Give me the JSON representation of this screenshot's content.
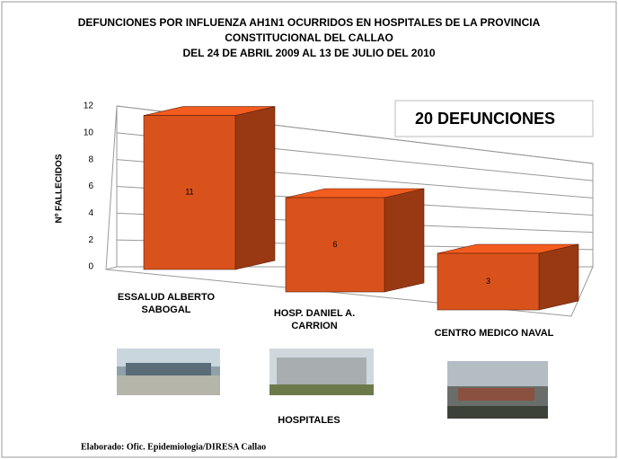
{
  "chart_data": {
    "type": "bar3d",
    "title": [
      "DEFUNCIONES  POR INFLUENZA AH1N1 OCURRIDOS EN HOSPITALES DE LA PROVINCIA",
      "CONSTITUCIONAL DEL CALLAO",
      "DEL 24 DE ABRIL 2009 AL 13 DE JULIO DEL 2010"
    ],
    "annotation": "20 DEFUNCIONES",
    "y_label": "Nº FALLECIDOS",
    "x_label": "HOSPITALES",
    "footer": "Elaborado: Ofic. Epidemiologia/DIRESA Callao",
    "categories": [
      "ESSALUD ALBERTO SABOGAL",
      "HOSP. DANIEL A. CARRION",
      "CENTRO MEDICO NAVAL"
    ],
    "values": [
      11,
      6,
      3
    ],
    "color": "#d9521c",
    "ylim": [
      0,
      12
    ],
    "yticks": [
      0,
      2,
      4,
      6,
      8,
      10,
      12
    ],
    "grid": true
  }
}
